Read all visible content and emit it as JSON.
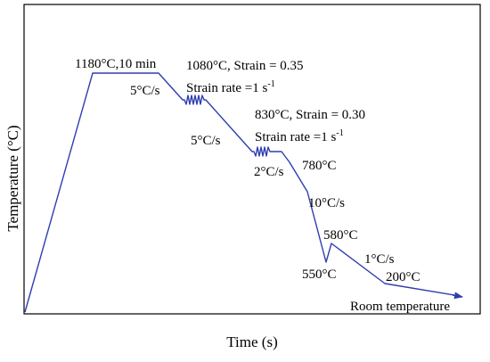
{
  "axes": {
    "x_label": "Time (s)",
    "y_label": "Temperature (°C)"
  },
  "annotations": {
    "soak": "1180°C,10 min",
    "rate1": "5°C/s",
    "deform1_line1": "1080°C, Strain = 0.35",
    "deform1_line2": "Strain rate =1 s",
    "deform1_sup": "-1",
    "rate2": "5°C/s",
    "deform2_line1": "830°C, Strain = 0.30",
    "deform2_line2": "Strain rate =1 s",
    "deform2_sup": "-1",
    "rate3": "2°C/s",
    "temp_780": "780°C",
    "rate4": "10°C/s",
    "temp_580": "580°C",
    "temp_550": "550°C",
    "rate5": "1°C/s",
    "temp_200": "200°C",
    "end_label": "Room temperature"
  },
  "colors": {
    "curve": "#2f3db0",
    "frame": "#000000"
  }
}
